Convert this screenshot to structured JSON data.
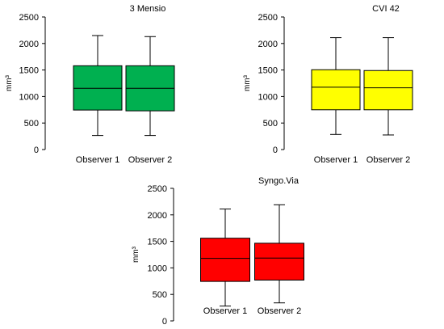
{
  "chart_data": [
    {
      "type": "boxplot",
      "title": "3 Mensio",
      "ylabel": "mm³",
      "ylim": [
        0,
        2500
      ],
      "yticks": [
        "0",
        "500",
        "1000",
        "1500",
        "2000",
        "2500"
      ],
      "color": "#00b050",
      "categories": [
        "Observer 1",
        "Observer 2"
      ],
      "boxes": [
        {
          "min": 265,
          "q1": 745,
          "median": 1155,
          "q3": 1580,
          "max": 2150
        },
        {
          "min": 265,
          "q1": 730,
          "median": 1155,
          "q3": 1580,
          "max": 2130
        }
      ]
    },
    {
      "type": "boxplot",
      "title": "CVI 42",
      "ylabel": "mm³",
      "ylim": [
        0,
        2500
      ],
      "yticks": [
        "0",
        "500",
        "1000",
        "1500",
        "2000",
        "2500"
      ],
      "color": "#ffff00",
      "categories": [
        "Observer 1",
        "Observer 2"
      ],
      "boxes": [
        {
          "min": 285,
          "q1": 750,
          "median": 1175,
          "q3": 1505,
          "max": 2110
        },
        {
          "min": 275,
          "q1": 750,
          "median": 1165,
          "q3": 1490,
          "max": 2110
        }
      ]
    },
    {
      "type": "boxplot",
      "title": "Syngo.Via",
      "ylabel": "mm³",
      "ylim": [
        0,
        2500
      ],
      "yticks": [
        "0",
        "500",
        "1000",
        "1500",
        "2000",
        "2500"
      ],
      "color": "#ff0000",
      "categories": [
        "Observer 1",
        "Observer 2"
      ],
      "boxes": [
        {
          "min": 280,
          "q1": 745,
          "median": 1180,
          "q3": 1560,
          "max": 2110
        },
        {
          "min": 340,
          "q1": 770,
          "median": 1185,
          "q3": 1465,
          "max": 2190
        }
      ]
    }
  ]
}
